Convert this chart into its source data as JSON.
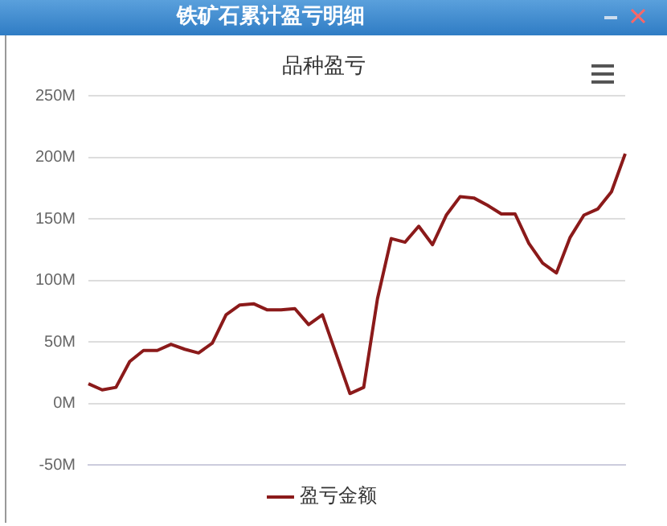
{
  "chart_data": {
    "type": "line",
    "title": "铁矿石累计盈亏明细",
    "subtitle": "品种盈亏",
    "categories": [
      null,
      null,
      null,
      null,
      null,
      null,
      null,
      null,
      null,
      null,
      null,
      null,
      null,
      null,
      null,
      null,
      null,
      null,
      null,
      null,
      null,
      null,
      null,
      null,
      null,
      null,
      null,
      null,
      null,
      null,
      null,
      null,
      null,
      null,
      null,
      null,
      null,
      null,
      null,
      null
    ],
    "series": [
      {
        "name": "盈亏金额",
        "color": "#8b1a1a",
        "values": [
          16,
          11,
          13,
          34,
          43,
          43,
          48,
          44,
          41,
          49,
          72,
          80,
          81,
          76,
          76,
          77,
          64,
          72,
          40,
          8,
          13,
          85,
          134,
          131,
          144,
          129,
          153,
          168,
          167,
          161,
          154,
          154,
          130,
          114,
          106,
          135,
          153,
          158,
          172,
          203
        ]
      }
    ],
    "ylim": [
      -50,
      250
    ],
    "yticks": [
      {
        "value": -50,
        "label": "-50M"
      },
      {
        "value": 0,
        "label": "0M"
      },
      {
        "value": 50,
        "label": "50M"
      },
      {
        "value": 100,
        "label": "100M"
      },
      {
        "value": 150,
        "label": "150M"
      },
      {
        "value": 200,
        "label": "200M"
      },
      {
        "value": 250,
        "label": "250M"
      }
    ],
    "grid": "y",
    "legend": "bottom",
    "marker": "none",
    "line_style": "solid",
    "tick_labels": "y"
  }
}
